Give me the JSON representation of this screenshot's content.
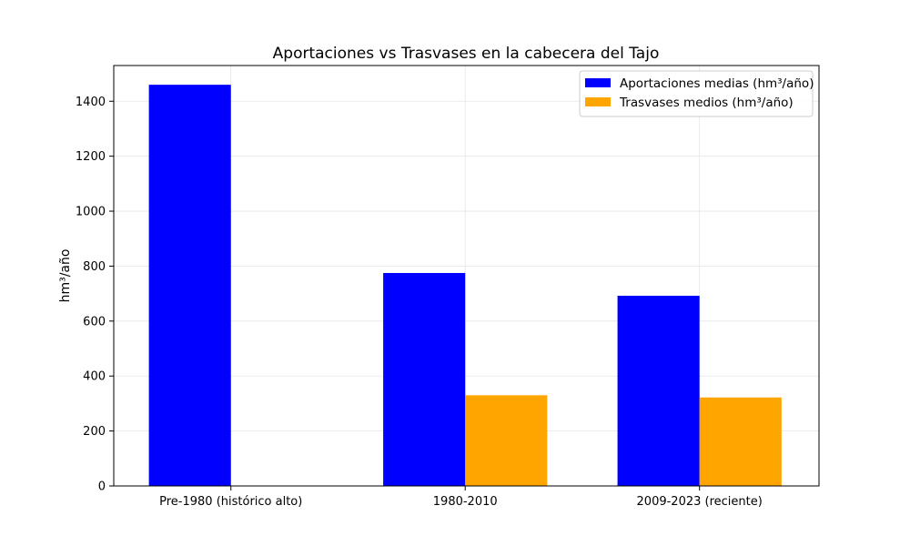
{
  "chart_data": {
    "type": "bar",
    "title": "Aportaciones vs Trasvases en la cabecera del Tajo",
    "xlabel": "",
    "ylabel": "hm³/año",
    "categories": [
      "Pre-1980 (histórico alto)",
      "1980-2010",
      "2009-2023 (reciente)"
    ],
    "series": [
      {
        "name": "Aportaciones medias (hm³/año)",
        "color": "#0000ff",
        "values": [
          1460,
          775,
          692
        ]
      },
      {
        "name": "Trasvases medios (hm³/año)",
        "color": "#ffa500",
        "values": [
          0,
          330,
          322
        ]
      }
    ],
    "ylim": [
      0,
      1530
    ],
    "yticks": [
      0,
      200,
      400,
      600,
      800,
      1000,
      1200,
      1400
    ],
    "grid": true,
    "legend": "top-right"
  }
}
